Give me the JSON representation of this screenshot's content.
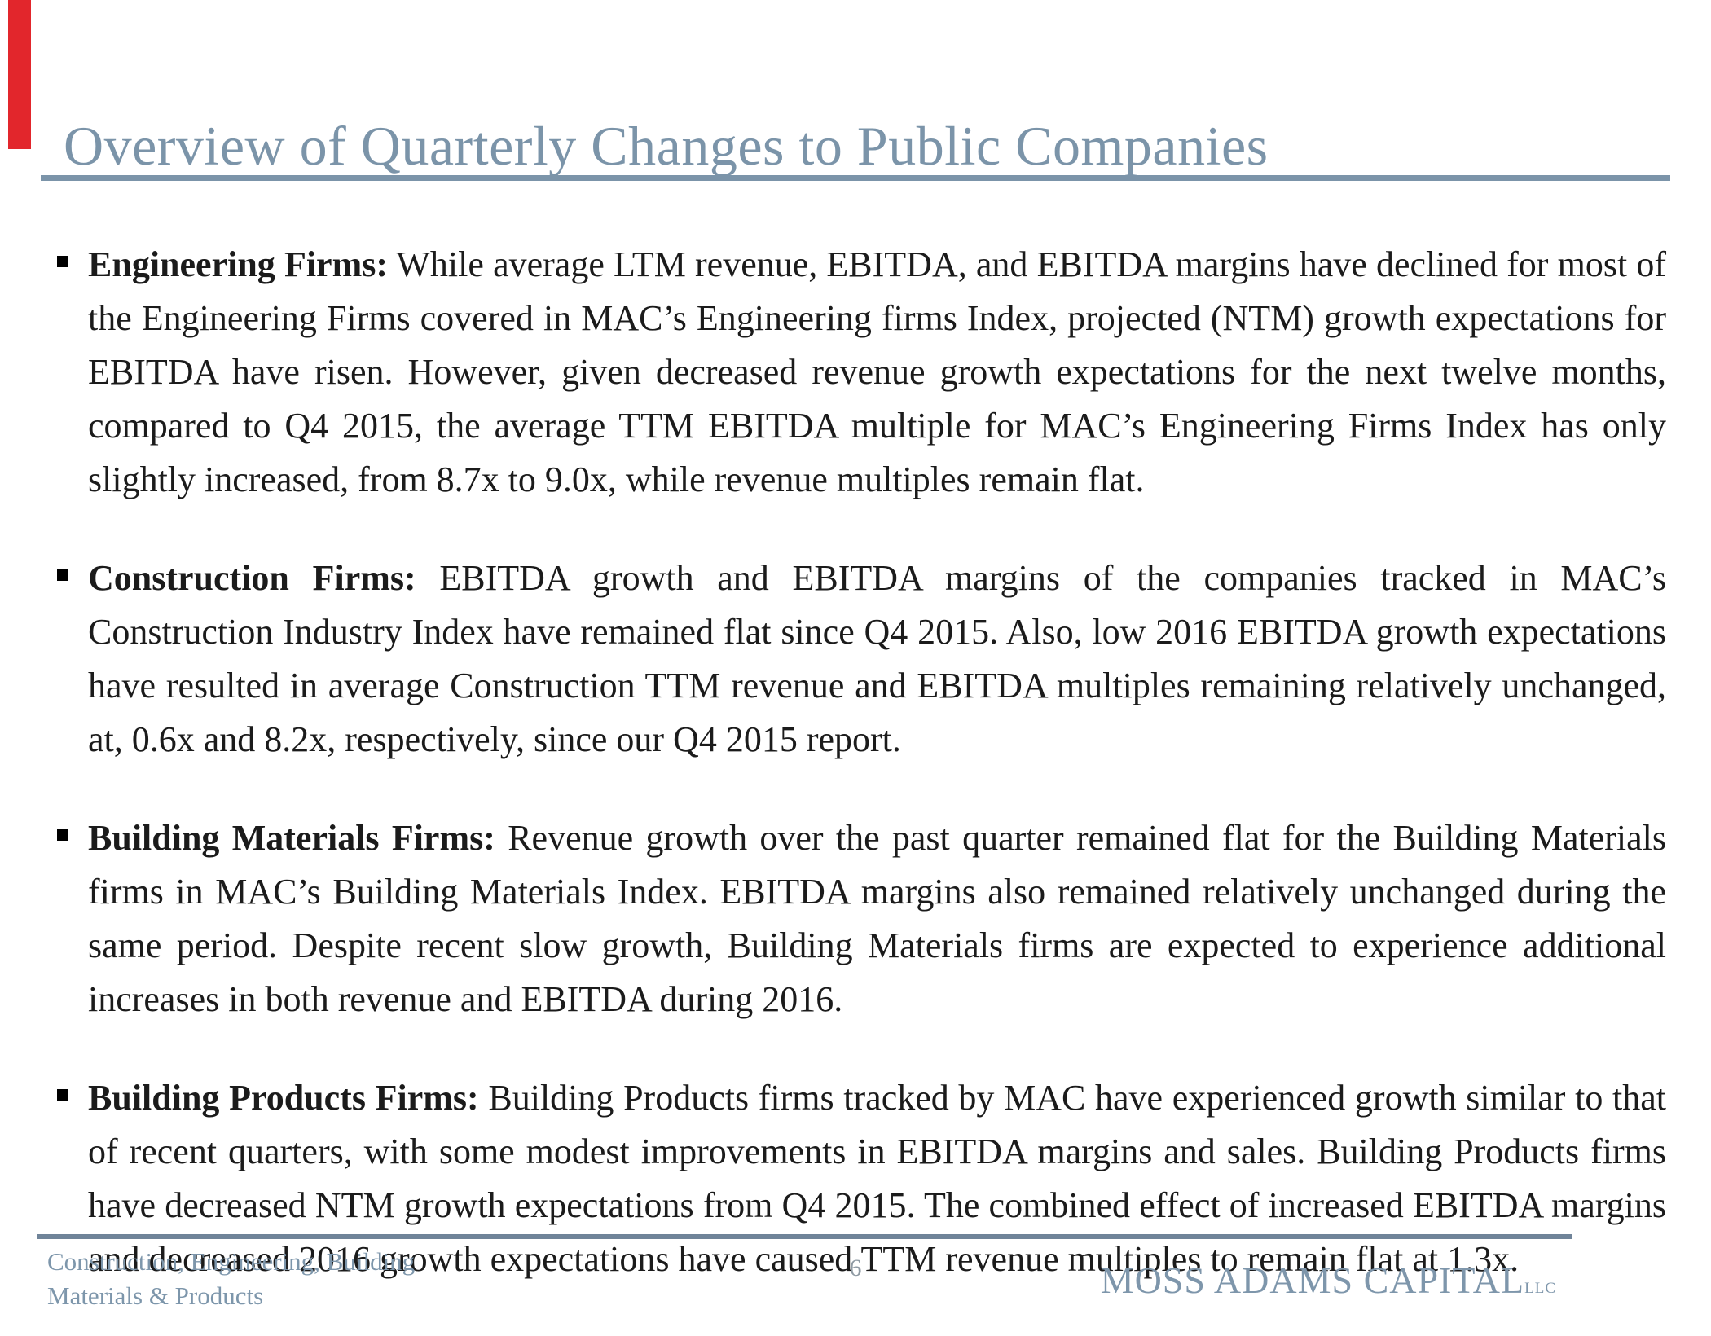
{
  "slide": {
    "title": "Overview of Quarterly Changes to Public Companies",
    "bullets": [
      {
        "lead": "Engineering Firms:",
        "text": "While average LTM revenue, EBITDA, and EBITDA margins have declined for most of the Engineering Firms covered in MAC’s Engineering firms Index, projected (NTM) growth expectations for EBITDA have risen. However, given decreased revenue growth expectations for the next twelve months, compared to Q4 2015, the average TTM EBITDA multiple for MAC’s Engineering  Firms Index has only slightly increased, from 8.7x to 9.0x, while revenue multiples remain flat."
      },
      {
        "lead": "Construction Firms:",
        "text": "EBITDA growth and EBITDA margins of the companies tracked in MAC’s Construction Industry Index have remained flat since Q4 2015. Also, low 2016 EBITDA growth expectations have resulted in average Construction TTM revenue and EBITDA multiples remaining relatively unchanged, at, 0.6x and 8.2x, respectively, since our Q4 2015 report."
      },
      {
        "lead": "Building Materials Firms:",
        "text": "Revenue growth over the past quarter remained flat for the Building Materials firms in MAC’s Building Materials Index.  EBITDA margins also remained relatively unchanged during the same period. Despite recent slow growth, Building Materials firms are expected to experience additional increases in both revenue and EBITDA during 2016."
      },
      {
        "lead": "Building Products Firms:",
        "text": "Building Products firms tracked by MAC have experienced growth similar to that of recent quarters, with some modest improvements in EBITDA margins and sales. Building Products firms have decreased NTM growth expectations from Q4 2015. The combined effect of increased EBITDA margins and decreased 2016 growth expectations have caused TTM revenue multiples to remain flat at 1.3x."
      }
    ],
    "footer": {
      "left_text": "Construction, Engineering, Building Materials & Products",
      "page_number": "6",
      "logo_main": "MOSS ADAMS CAPITAL",
      "logo_suffix": "LLC"
    },
    "colors": {
      "accent_blue": "#7b94a9",
      "accent_red": "#e2262c",
      "body_text": "#1b1b1b",
      "footer_text": "#7d96ab",
      "page_number_gray": "#8f9aa3"
    }
  }
}
